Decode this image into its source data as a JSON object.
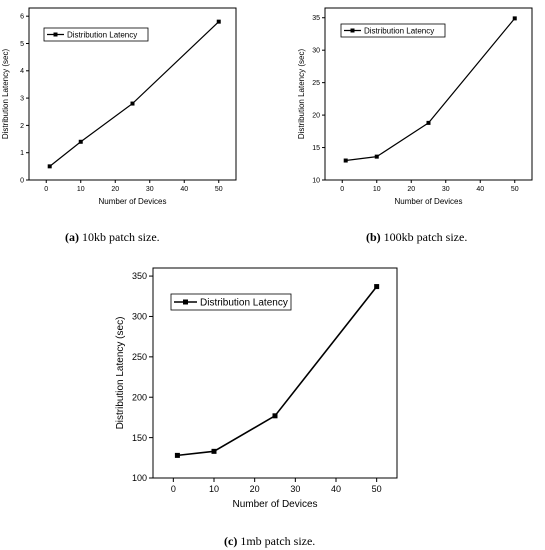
{
  "chart_data": [
    {
      "type": "line",
      "x": [
        1,
        10,
        25,
        50
      ],
      "series": [
        {
          "name": "Distribution Latency",
          "values": [
            0.5,
            1.4,
            2.8,
            5.8
          ]
        }
      ],
      "xlabel": "Number of Devices",
      "ylabel": "Distribution Latency (sec)",
      "xlim": [
        -5,
        55
      ],
      "ylim": [
        0,
        6.3
      ],
      "xticks": [
        0,
        10,
        20,
        30,
        40,
        50
      ],
      "yticks": [
        0,
        1,
        2,
        3,
        4,
        5,
        6
      ],
      "legend": "top-left",
      "caption_label": "(a)",
      "caption_text": "10kb patch size."
    },
    {
      "type": "line",
      "x": [
        1,
        10,
        25,
        50
      ],
      "series": [
        {
          "name": "Distribution Latency",
          "values": [
            13.0,
            13.6,
            18.8,
            34.9
          ]
        }
      ],
      "xlabel": "Number of Devices",
      "ylabel": "Distribution Latency (sec)",
      "xlim": [
        -5,
        55
      ],
      "ylim": [
        10,
        36.5
      ],
      "xticks": [
        0,
        10,
        20,
        30,
        40,
        50
      ],
      "yticks": [
        10,
        15,
        20,
        25,
        30,
        35
      ],
      "legend": "top-left",
      "caption_label": "(b)",
      "caption_text": "100kb patch size."
    },
    {
      "type": "line",
      "x": [
        1,
        10,
        25,
        50
      ],
      "series": [
        {
          "name": "Distribution Latency",
          "values": [
            128,
            133,
            177,
            337
          ]
        }
      ],
      "xlabel": "Number of Devices",
      "ylabel": "Distribution Latency (sec)",
      "xlim": [
        -5,
        55
      ],
      "ylim": [
        100,
        360
      ],
      "xticks": [
        0,
        10,
        20,
        30,
        40,
        50
      ],
      "yticks": [
        100,
        150,
        200,
        250,
        300,
        350
      ],
      "legend": "top-left",
      "caption_label": "(c)",
      "caption_text": "1mb patch size."
    }
  ]
}
